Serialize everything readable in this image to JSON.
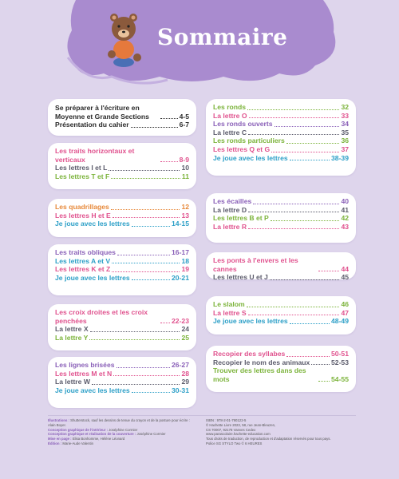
{
  "title": "Sommaire",
  "colors": {
    "background": "#ded5ec",
    "cloud": "#a98bcf",
    "card": "#ffffff"
  },
  "left_column": [
    {
      "entries": [
        {
          "text": "Se préparer à l'écriture en Moyenne et Grande Sections",
          "pages": "4-5",
          "color": "c-black"
        },
        {
          "text": "Présentation du cahier",
          "pages": "6-7",
          "color": "c-black"
        }
      ]
    },
    {
      "entries": [
        {
          "text": "Les traits horizontaux et verticaux",
          "pages": "8-9",
          "color": "c-pink"
        },
        {
          "text": "Les lettres I et L",
          "pages": "10",
          "color": "c-gray"
        },
        {
          "text": "Les lettres T et F",
          "pages": "11",
          "color": "c-green"
        }
      ]
    },
    {
      "entries": [
        {
          "text": "Les quadrillages",
          "pages": "12",
          "color": "c-orange"
        },
        {
          "text": "Les lettres H et E",
          "pages": "13",
          "color": "c-pink"
        },
        {
          "text": "Je joue avec les lettres",
          "pages": "14-15",
          "color": "c-blue"
        }
      ]
    },
    {
      "entries": [
        {
          "text": "Les traits obliques",
          "pages": "16-17",
          "color": "c-purple"
        },
        {
          "text": "Les lettres A et V",
          "pages": "18",
          "color": "c-blue"
        },
        {
          "text": "Les lettres K et Z",
          "pages": "19",
          "color": "c-pink"
        },
        {
          "text": "Je joue avec les lettres",
          "pages": "20-21",
          "color": "c-blue"
        }
      ]
    },
    {
      "entries": [
        {
          "text": "Les croix droites et les croix penchées",
          "pages": "22-23",
          "color": "c-pink"
        },
        {
          "text": "La lettre X",
          "pages": "24",
          "color": "c-gray"
        },
        {
          "text": "La lettre Y",
          "pages": "25",
          "color": "c-green"
        }
      ]
    },
    {
      "entries": [
        {
          "text": "Les lignes brisées",
          "pages": "26-27",
          "color": "c-purple"
        },
        {
          "text": "Les lettres M et N",
          "pages": "28",
          "color": "c-pink"
        },
        {
          "text": "La lettre W",
          "pages": "29",
          "color": "c-gray"
        },
        {
          "text": "Je joue avec les lettres",
          "pages": "30-31",
          "color": "c-blue"
        }
      ]
    }
  ],
  "right_column": [
    {
      "entries": [
        {
          "text": "Les ronds",
          "pages": "32",
          "color": "c-green"
        },
        {
          "text": "La lettre O",
          "pages": "33",
          "color": "c-pink"
        },
        {
          "text": "Les ronds ouverts",
          "pages": "34",
          "color": "c-purple"
        },
        {
          "text": "La lettre C",
          "pages": "35",
          "color": "c-gray"
        },
        {
          "text": "Les ronds particuliers",
          "pages": "36",
          "color": "c-green"
        },
        {
          "text": "Les lettres Q et G",
          "pages": "37",
          "color": "c-pink"
        },
        {
          "text": "Je joue avec les lettres",
          "pages": "38-39",
          "color": "c-blue"
        }
      ]
    },
    {
      "entries": [
        {
          "text": "Les écailles",
          "pages": "40",
          "color": "c-purple"
        },
        {
          "text": "La lettre D",
          "pages": "41",
          "color": "c-gray"
        },
        {
          "text": "Les lettres B et P",
          "pages": "42",
          "color": "c-green"
        },
        {
          "text": "La lettre R",
          "pages": "43",
          "color": "c-pink"
        }
      ]
    },
    {
      "entries": [
        {
          "text": "Les ponts à l'envers et les cannes",
          "pages": "44",
          "color": "c-pink"
        },
        {
          "text": "Les lettres U et J",
          "pages": "45",
          "color": "c-gray"
        }
      ]
    },
    {
      "entries": [
        {
          "text": "Le slalom",
          "pages": "46",
          "color": "c-green"
        },
        {
          "text": "La lettre S",
          "pages": "47",
          "color": "c-pink"
        },
        {
          "text": "Je joue avec les lettres",
          "pages": "48-49",
          "color": "c-blue"
        }
      ]
    },
    {
      "entries": [
        {
          "text": "Recopier des syllabes",
          "pages": "50-51",
          "color": "c-pink"
        },
        {
          "text": "Recopier le nom des animaux",
          "pages": "52-53",
          "color": "c-gray"
        },
        {
          "text": "Trouver des lettres dans des mots",
          "pages": "54-55",
          "color": "c-green"
        }
      ]
    }
  ],
  "credits": [
    {
      "label": "Illustrations :",
      "text": "Shutterstock, sauf les dessins de tenue du crayon et de la posture pour écrire : Alain Boyer."
    },
    {
      "label": "Conception graphique de l'intérieur :",
      "text": "Joséphine Cormier"
    },
    {
      "label": "Conception graphique et réalisation de la couverture :",
      "text": "Joséphine Cormier"
    },
    {
      "label": "Mise en page :",
      "text": "Elisa Bonhomme, Hélène Léonard"
    },
    {
      "label": "Édition :",
      "text": "Marie-Aude Valentin"
    }
  ],
  "legal": [
    "ISBN : 978-2-01-790122-5",
    "© Hachette Livre 2023, 58, rue Jean-Bleuzen,",
    "CS 70007, 92178 Vanves Cedex",
    "www.parascolaire.hachette-education.com",
    "Tous droits de traduction, de reproduction et d'adaptation réservés pour tous pays.",
    "Police SG STYLO Two © 6 HEURES"
  ]
}
